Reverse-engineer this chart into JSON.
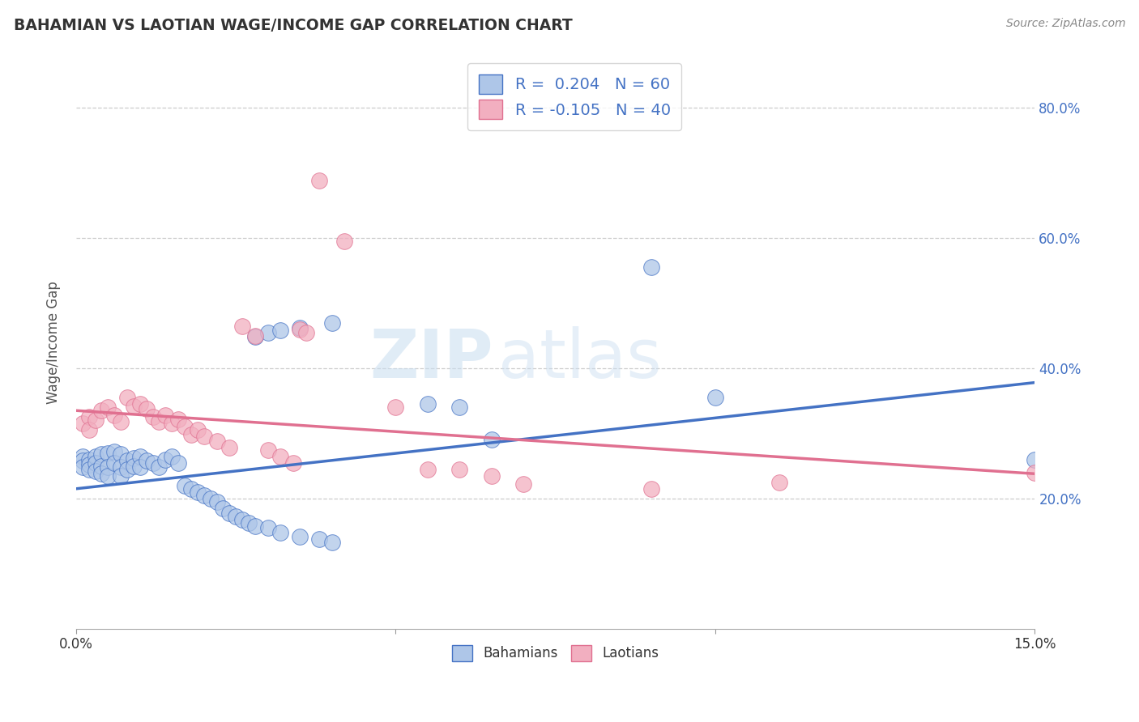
{
  "title": "BAHAMIAN VS LAOTIAN WAGE/INCOME GAP CORRELATION CHART",
  "source": "Source: ZipAtlas.com",
  "ylabel": "Wage/Income Gap",
  "y_ticks": [
    0.2,
    0.4,
    0.6,
    0.8
  ],
  "y_tick_labels": [
    "20.0%",
    "40.0%",
    "60.0%",
    "80.0%"
  ],
  "x_range": [
    0.0,
    0.15
  ],
  "y_range": [
    0.0,
    0.88
  ],
  "watermark_zip": "ZIP",
  "watermark_atlas": "atlas",
  "bahamian_color": "#aec6e8",
  "laotian_color": "#f2afc0",
  "bahamian_edge_color": "#4472c4",
  "laotian_edge_color": "#e07090",
  "bahamian_line_color": "#4472c4",
  "laotian_line_color": "#e07090",
  "R_bahamian": 0.204,
  "N_bahamian": 60,
  "R_laotian": -0.105,
  "N_laotian": 40,
  "legend_text_color": "#4472c4",
  "bah_line_x0": 0.0,
  "bah_line_y0": 0.215,
  "bah_line_x1": 0.15,
  "bah_line_y1": 0.378,
  "lao_line_x0": 0.0,
  "lao_line_y0": 0.335,
  "lao_line_x1": 0.15,
  "lao_line_y1": 0.238,
  "bahamian_points": [
    [
      0.001,
      0.265
    ],
    [
      0.001,
      0.258
    ],
    [
      0.001,
      0.248
    ],
    [
      0.002,
      0.26
    ],
    [
      0.002,
      0.252
    ],
    [
      0.002,
      0.245
    ],
    [
      0.003,
      0.265
    ],
    [
      0.003,
      0.255
    ],
    [
      0.003,
      0.242
    ],
    [
      0.004,
      0.268
    ],
    [
      0.004,
      0.25
    ],
    [
      0.004,
      0.238
    ],
    [
      0.005,
      0.27
    ],
    [
      0.005,
      0.248
    ],
    [
      0.005,
      0.235
    ],
    [
      0.006,
      0.272
    ],
    [
      0.006,
      0.255
    ],
    [
      0.007,
      0.268
    ],
    [
      0.007,
      0.248
    ],
    [
      0.007,
      0.235
    ],
    [
      0.008,
      0.258
    ],
    [
      0.008,
      0.245
    ],
    [
      0.009,
      0.262
    ],
    [
      0.009,
      0.25
    ],
    [
      0.01,
      0.265
    ],
    [
      0.01,
      0.248
    ],
    [
      0.011,
      0.258
    ],
    [
      0.012,
      0.255
    ],
    [
      0.013,
      0.248
    ],
    [
      0.014,
      0.26
    ],
    [
      0.015,
      0.265
    ],
    [
      0.016,
      0.255
    ],
    [
      0.017,
      0.22
    ],
    [
      0.018,
      0.215
    ],
    [
      0.019,
      0.21
    ],
    [
      0.02,
      0.205
    ],
    [
      0.021,
      0.2
    ],
    [
      0.022,
      0.195
    ],
    [
      0.023,
      0.185
    ],
    [
      0.024,
      0.178
    ],
    [
      0.025,
      0.172
    ],
    [
      0.026,
      0.168
    ],
    [
      0.027,
      0.162
    ],
    [
      0.028,
      0.158
    ],
    [
      0.03,
      0.155
    ],
    [
      0.032,
      0.148
    ],
    [
      0.035,
      0.142
    ],
    [
      0.038,
      0.138
    ],
    [
      0.04,
      0.133
    ],
    [
      0.028,
      0.448
    ],
    [
      0.03,
      0.455
    ],
    [
      0.032,
      0.458
    ],
    [
      0.035,
      0.462
    ],
    [
      0.04,
      0.47
    ],
    [
      0.055,
      0.345
    ],
    [
      0.06,
      0.34
    ],
    [
      0.065,
      0.29
    ],
    [
      0.09,
      0.555
    ],
    [
      0.1,
      0.355
    ],
    [
      0.15,
      0.26
    ]
  ],
  "laotian_points": [
    [
      0.001,
      0.315
    ],
    [
      0.002,
      0.325
    ],
    [
      0.002,
      0.305
    ],
    [
      0.003,
      0.32
    ],
    [
      0.004,
      0.335
    ],
    [
      0.005,
      0.34
    ],
    [
      0.006,
      0.328
    ],
    [
      0.007,
      0.318
    ],
    [
      0.008,
      0.355
    ],
    [
      0.009,
      0.342
    ],
    [
      0.01,
      0.345
    ],
    [
      0.011,
      0.338
    ],
    [
      0.012,
      0.325
    ],
    [
      0.013,
      0.318
    ],
    [
      0.014,
      0.328
    ],
    [
      0.015,
      0.315
    ],
    [
      0.016,
      0.322
    ],
    [
      0.017,
      0.31
    ],
    [
      0.018,
      0.298
    ],
    [
      0.019,
      0.305
    ],
    [
      0.02,
      0.295
    ],
    [
      0.022,
      0.288
    ],
    [
      0.024,
      0.278
    ],
    [
      0.026,
      0.465
    ],
    [
      0.028,
      0.45
    ],
    [
      0.03,
      0.275
    ],
    [
      0.032,
      0.265
    ],
    [
      0.034,
      0.255
    ],
    [
      0.035,
      0.46
    ],
    [
      0.036,
      0.455
    ],
    [
      0.038,
      0.688
    ],
    [
      0.042,
      0.595
    ],
    [
      0.05,
      0.34
    ],
    [
      0.055,
      0.245
    ],
    [
      0.06,
      0.245
    ],
    [
      0.065,
      0.235
    ],
    [
      0.07,
      0.222
    ],
    [
      0.09,
      0.215
    ],
    [
      0.11,
      0.225
    ],
    [
      0.15,
      0.24
    ]
  ],
  "background_color": "#ffffff",
  "grid_color": "#cccccc"
}
